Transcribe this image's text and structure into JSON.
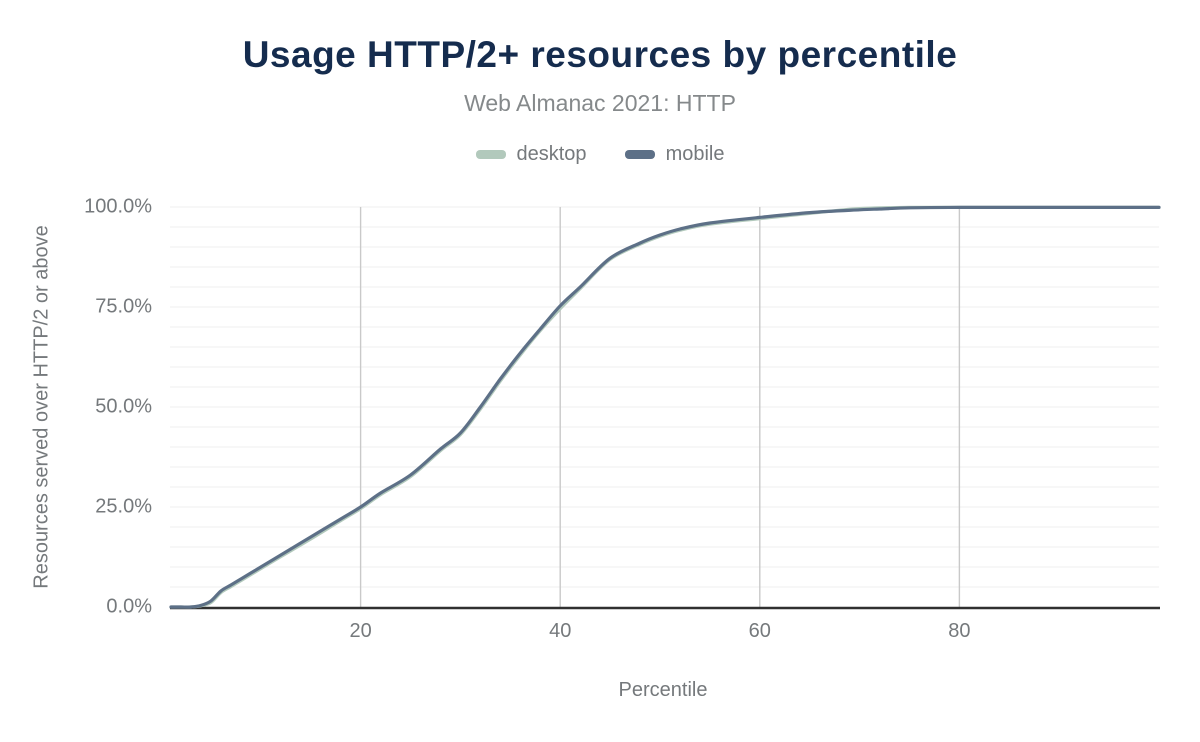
{
  "chart": {
    "title": "Usage HTTP/2+ resources by percentile",
    "subtitle": "Web Almanac 2021: HTTP",
    "x_axis_title": "Percentile",
    "y_axis_title": "Resources served over HTTP/2 or above",
    "legend": [
      {
        "label": "desktop",
        "color": "#b2c9bc"
      },
      {
        "label": "mobile",
        "color": "#5d7087"
      }
    ],
    "colors": {
      "title_text": "#152c4e",
      "muted_text": "#75797c",
      "subtitle_text": "#85898b",
      "axis_line": "#303030",
      "h_gridline": "#efefef",
      "v_gridline": "#c9c9c9",
      "background": "#ffffff"
    }
  },
  "chart_data": {
    "type": "line",
    "title": "Usage HTTP/2+ resources by percentile",
    "subtitle": "Web Almanac 2021: HTTP",
    "xlabel": "Percentile",
    "ylabel": "Resources served over HTTP/2 or above",
    "xlim": [
      1,
      100
    ],
    "ylim": [
      0,
      100
    ],
    "x_ticks": [
      {
        "value": 20,
        "label": "20"
      },
      {
        "value": 40,
        "label": "40"
      },
      {
        "value": 60,
        "label": "60"
      },
      {
        "value": 80,
        "label": "80"
      }
    ],
    "y_ticks": [
      {
        "value": 0,
        "label": "0.0%"
      },
      {
        "value": 25,
        "label": "25.0%"
      },
      {
        "value": 50,
        "label": "50.0%"
      },
      {
        "value": 75,
        "label": "75.0%"
      },
      {
        "value": 100,
        "label": "100.0%"
      }
    ],
    "grid": {
      "horizontal_every": 5,
      "vertical_at": [
        20,
        40,
        60,
        80
      ]
    },
    "legend_position": "top",
    "y_unit": "percent",
    "series": [
      {
        "name": "desktop",
        "color": "#b2c9bc",
        "points": [
          [
            1,
            0
          ],
          [
            2,
            0
          ],
          [
            3,
            0
          ],
          [
            4,
            0.3
          ],
          [
            5,
            1.1
          ],
          [
            6,
            3.6
          ],
          [
            7,
            5.1
          ],
          [
            8,
            6.6
          ],
          [
            9,
            8.1
          ],
          [
            10,
            9.6
          ],
          [
            12,
            12.6
          ],
          [
            15,
            17
          ],
          [
            18,
            21.6
          ],
          [
            20,
            24.6
          ],
          [
            22,
            28.1
          ],
          [
            25,
            32.6
          ],
          [
            28,
            39.1
          ],
          [
            30,
            43.1
          ],
          [
            32,
            49.5
          ],
          [
            34,
            56.5
          ],
          [
            36,
            63
          ],
          [
            38,
            69.1
          ],
          [
            40,
            74.6
          ],
          [
            42,
            79.6
          ],
          [
            45,
            86.9
          ],
          [
            48,
            90.7
          ],
          [
            50,
            92.7
          ],
          [
            52,
            94.2
          ],
          [
            55,
            95.7
          ],
          [
            60,
            97.1
          ],
          [
            65,
            98.4
          ],
          [
            68,
            99.2
          ],
          [
            70,
            99.6
          ],
          [
            72,
            99.8
          ],
          [
            75,
            99.9
          ],
          [
            80,
            99.9
          ],
          [
            90,
            99.9
          ],
          [
            100,
            99.9
          ]
        ]
      },
      {
        "name": "mobile",
        "color": "#5d7087",
        "points": [
          [
            1,
            0
          ],
          [
            2,
            0
          ],
          [
            3,
            0
          ],
          [
            4,
            0.4
          ],
          [
            5,
            1.5
          ],
          [
            6,
            4
          ],
          [
            7,
            5.5
          ],
          [
            8,
            7
          ],
          [
            9,
            8.5
          ],
          [
            10,
            10
          ],
          [
            12,
            13
          ],
          [
            15,
            17.5
          ],
          [
            18,
            22
          ],
          [
            20,
            25
          ],
          [
            22,
            28.5
          ],
          [
            25,
            33
          ],
          [
            28,
            39.5
          ],
          [
            30,
            43.5
          ],
          [
            32,
            50
          ],
          [
            34,
            57
          ],
          [
            36,
            63.5
          ],
          [
            38,
            69.5
          ],
          [
            40,
            75.3
          ],
          [
            42,
            80
          ],
          [
            45,
            87.2
          ],
          [
            48,
            91
          ],
          [
            50,
            93
          ],
          [
            52,
            94.5
          ],
          [
            55,
            96
          ],
          [
            60,
            97.4
          ],
          [
            65,
            98.6
          ],
          [
            70,
            99.3
          ],
          [
            72,
            99.5
          ],
          [
            75,
            99.8
          ],
          [
            80,
            99.9
          ],
          [
            90,
            99.9
          ],
          [
            100,
            99.9
          ]
        ]
      }
    ]
  }
}
